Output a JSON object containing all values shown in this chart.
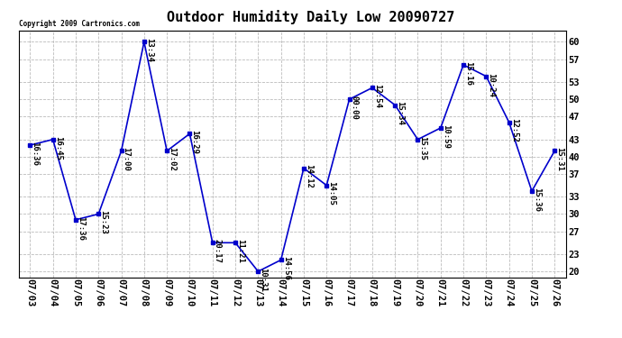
{
  "title": "Outdoor Humidity Daily Low 20090727",
  "copyright": "Copyright 2009 Cartronics.com",
  "dates": [
    "07/03",
    "07/04",
    "07/05",
    "07/06",
    "07/07",
    "07/08",
    "07/09",
    "07/10",
    "07/11",
    "07/12",
    "07/13",
    "07/14",
    "07/15",
    "07/16",
    "07/17",
    "07/18",
    "07/19",
    "07/20",
    "07/21",
    "07/22",
    "07/23",
    "07/24",
    "07/25",
    "07/26"
  ],
  "values": [
    42,
    43,
    29,
    30,
    41,
    60,
    41,
    44,
    25,
    25,
    20,
    22,
    38,
    35,
    50,
    52,
    49,
    43,
    45,
    56,
    54,
    46,
    34,
    41
  ],
  "labels": [
    "16:36",
    "16:45",
    "17:36",
    "15:23",
    "17:00",
    "13:34",
    "17:02",
    "16:29",
    "20:17",
    "11:21",
    "10:31",
    "14:56",
    "14:12",
    "14:05",
    "00:00",
    "12:54",
    "15:34",
    "15:35",
    "10:59",
    "15:16",
    "10:24",
    "12:52",
    "15:36",
    "15:31"
  ],
  "line_color": "#0000cc",
  "marker_color": "#0000cc",
  "background_color": "#ffffff",
  "grid_color": "#bbbbbb",
  "yticks": [
    20,
    23,
    27,
    30,
    33,
    37,
    40,
    43,
    47,
    50,
    53,
    57,
    60
  ],
  "ylim": [
    19,
    62
  ],
  "title_fontsize": 11,
  "label_fontsize": 6.5,
  "tick_fontsize": 7.5
}
